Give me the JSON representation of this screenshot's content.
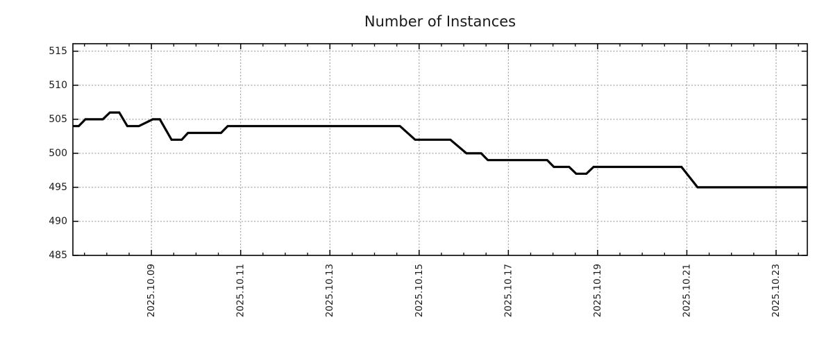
{
  "page": {
    "background_color": "#ffffff"
  },
  "chart_data": {
    "type": "line",
    "title": "Number of Instances",
    "text_color": "#1a1a1a",
    "axis_color": "#000000",
    "grid": {
      "show": true,
      "style": "dotted",
      "color": "#909090"
    },
    "legend": {
      "show": false
    },
    "x_axis": {
      "unit": "date, October 2025 (day of month, fractional)",
      "range": [
        7.24,
        23.7
      ],
      "minor_tick_step_days": 0.5,
      "label_rotation_deg": -90,
      "major_ticks": [
        {
          "day": 9,
          "label": "2025.10.09"
        },
        {
          "day": 11,
          "label": "2025.10.11"
        },
        {
          "day": 13,
          "label": "2025.10.13"
        },
        {
          "day": 15,
          "label": "2025.10.15"
        },
        {
          "day": 17,
          "label": "2025.10.17"
        },
        {
          "day": 19,
          "label": "2025.10.19"
        },
        {
          "day": 21,
          "label": "2025.10.21"
        },
        {
          "day": 23,
          "label": "2025.10.23"
        }
      ]
    },
    "y_axis": {
      "range": [
        485,
        516.1
      ],
      "major_ticks": [
        485,
        490,
        495,
        500,
        505,
        510,
        515
      ]
    },
    "series": [
      {
        "name": "instances",
        "color": "#000000",
        "line_width": 3.2,
        "points": [
          [
            7.24,
            504
          ],
          [
            7.37,
            504
          ],
          [
            7.52,
            505
          ],
          [
            7.91,
            505
          ],
          [
            8.07,
            506
          ],
          [
            8.28,
            506
          ],
          [
            8.46,
            504
          ],
          [
            8.72,
            504
          ],
          [
            9.03,
            505
          ],
          [
            9.19,
            505
          ],
          [
            9.45,
            502
          ],
          [
            9.68,
            502
          ],
          [
            9.82,
            503
          ],
          [
            10.56,
            503
          ],
          [
            10.71,
            504
          ],
          [
            14.57,
            504
          ],
          [
            14.91,
            502
          ],
          [
            15.7,
            502
          ],
          [
            16.06,
            500
          ],
          [
            16.39,
            500
          ],
          [
            16.54,
            499
          ],
          [
            17.87,
            499
          ],
          [
            18.02,
            498
          ],
          [
            18.36,
            498
          ],
          [
            18.52,
            497
          ],
          [
            18.75,
            497
          ],
          [
            18.91,
            498
          ],
          [
            20.88,
            498
          ],
          [
            21.24,
            495
          ],
          [
            23.7,
            495
          ]
        ]
      }
    ]
  }
}
